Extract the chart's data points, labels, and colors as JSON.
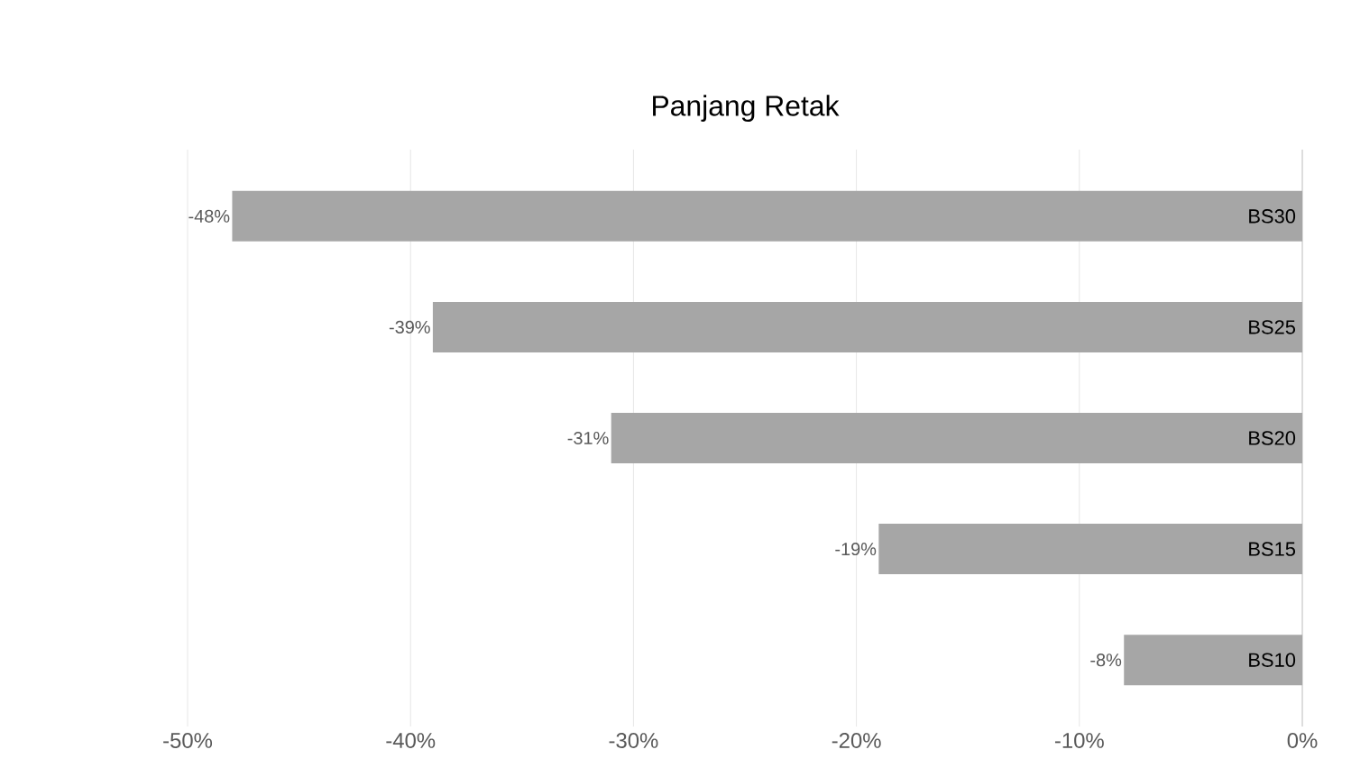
{
  "chart_data": {
    "type": "bar",
    "orientation": "horizontal",
    "title": "Panjang Retak",
    "categories": [
      "BS30",
      "BS25",
      "BS20",
      "BS15",
      "BS10"
    ],
    "values": [
      -48,
      -39,
      -31,
      -19,
      -8
    ],
    "value_labels": [
      "-48%",
      "-39%",
      "-31%",
      "-19%",
      "-8%"
    ],
    "color": "#a6a6a6",
    "xlim": [
      -50,
      0
    ],
    "xticks": [
      {
        "value": -50,
        "label": "-50%"
      },
      {
        "value": -40,
        "label": "-40%"
      },
      {
        "value": -30,
        "label": "-30%"
      },
      {
        "value": -20,
        "label": "-20%"
      },
      {
        "value": -10,
        "label": "-10%"
      },
      {
        "value": 0,
        "label": "0%"
      }
    ],
    "grid": "x"
  }
}
